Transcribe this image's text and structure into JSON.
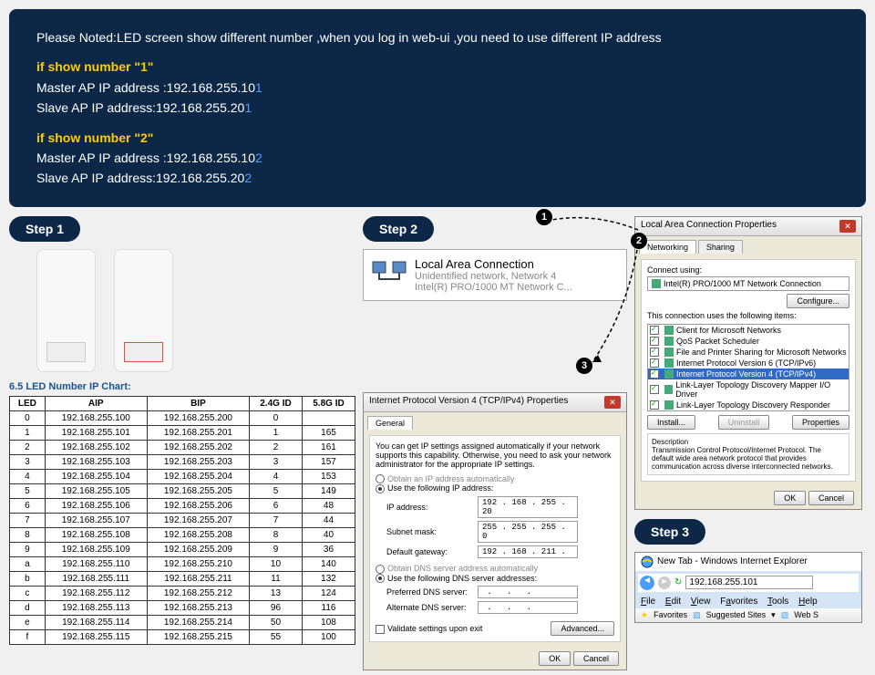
{
  "banner": {
    "intro": "Please Noted:LED screen show different number ,when you log in web-ui ,you need to use different IP address",
    "h1": "if show number \"1\"",
    "m1a": "Master AP IP address :192.168.255.10",
    "m1d": "1",
    "s1a": "Slave AP IP address:192.168.255.20",
    "s1d": "1",
    "h2": "if show number \"2\"",
    "m2a": "Master AP IP address :192.168.255.10",
    "m2d": "2",
    "s2a": "Slave AP IP address:192.168.255.20",
    "s2d": "2"
  },
  "steps": {
    "s1": "Step 1",
    "s2": "Step 2",
    "s3": "Step 3"
  },
  "chart": {
    "title": "6.5 LED Number IP Chart:",
    "columns": [
      "LED",
      "AIP",
      "BIP",
      "2.4G ID",
      "5.8G ID"
    ],
    "rows": [
      [
        "0",
        "192.168.255.100",
        "192.168.255.200",
        "0",
        ""
      ],
      [
        "1",
        "192.168.255.101",
        "192.168.255.201",
        "1",
        "165"
      ],
      [
        "2",
        "192.168.255.102",
        "192.168.255.202",
        "2",
        "161"
      ],
      [
        "3",
        "192.168.255.103",
        "192.168.255.203",
        "3",
        "157"
      ],
      [
        "4",
        "192.168.255.104",
        "192.168.255.204",
        "4",
        "153"
      ],
      [
        "5",
        "192.168.255.105",
        "192.168.255.205",
        "5",
        "149"
      ],
      [
        "6",
        "192.168.255.106",
        "192.168.255.206",
        "6",
        "48"
      ],
      [
        "7",
        "192.168.255.107",
        "192.168.255.207",
        "7",
        "44"
      ],
      [
        "8",
        "192.168.255.108",
        "192.168.255.208",
        "8",
        "40"
      ],
      [
        "9",
        "192.168.255.109",
        "192.168.255.209",
        "9",
        "36"
      ],
      [
        "a",
        "192.168.255.110",
        "192.168.255.210",
        "10",
        "140"
      ],
      [
        "b",
        "192.168.255.111",
        "192.168.255.211",
        "11",
        "132"
      ],
      [
        "c",
        "192.168.255.112",
        "192.168.255.212",
        "13",
        "124"
      ],
      [
        "d",
        "192.168.255.113",
        "192.168.255.213",
        "96",
        "116"
      ],
      [
        "e",
        "192.168.255.114",
        "192.168.255.214",
        "50",
        "108"
      ],
      [
        "f",
        "192.168.255.115",
        "192.168.255.215",
        "55",
        "100"
      ]
    ]
  },
  "lac": {
    "title": "Local Area Connection",
    "l1": "Unidentified network, Network 4",
    "l2": "Intel(R) PRO/1000 MT Network C..."
  },
  "ipv4": {
    "title": "Internet Protocol Version 4 (TCP/IPv4) Properties",
    "tab": "General",
    "desc": "You can get IP settings assigned automatically if your network supports this capability. Otherwise, you need to ask your network administrator for the appropriate IP settings.",
    "r1": "Obtain an IP address automatically",
    "r2": "Use the following IP address:",
    "f_ip": "IP address:",
    "v_ip": "192 . 168 . 255 . 20",
    "f_mask": "Subnet mask:",
    "v_mask": "255 . 255 . 255 .  0",
    "f_gw": "Default gateway:",
    "v_gw": "192 . 168 . 211 .",
    "r3": "Obtain DNS server address automatically",
    "r4": "Use the following DNS server addresses:",
    "f_pdns": "Preferred DNS server:",
    "f_adns": "Alternate DNS server:",
    "validate": "Validate settings upon exit",
    "advanced": "Advanced...",
    "ok": "OK",
    "cancel": "Cancel"
  },
  "lacprops": {
    "title": "Local Area Connection Properties",
    "tab1": "Networking",
    "tab2": "Sharing",
    "connusing": "Connect using:",
    "adapter": "Intel(R) PRO/1000 MT Network Connection",
    "configure": "Configure...",
    "itemstxt": "This connection uses the following items:",
    "items": [
      "Client for Microsoft Networks",
      "QoS Packet Scheduler",
      "File and Printer Sharing for Microsoft Networks",
      "Internet Protocol Version 6 (TCP/IPv6)",
      "Internet Protocol Version 4 (TCP/IPv4)",
      "Link-Layer Topology Discovery Mapper I/O Driver",
      "Link-Layer Topology Discovery Responder"
    ],
    "install": "Install...",
    "uninstall": "Uninstall",
    "properties": "Properties",
    "desc_h": "Description",
    "desc": "Transmission Control Protocol/Internet Protocol. The default wide area network protocol that provides communication across diverse interconnected networks.",
    "ok": "OK",
    "cancel": "Cancel"
  },
  "browser": {
    "title": "New Tab - Windows Internet Explorer",
    "url": "192.168.255.101",
    "menu": {
      "file": "File",
      "edit": "Edit",
      "view": "View",
      "fav": "Favorites",
      "tools": "Tools",
      "help": "Help"
    },
    "favlabel": "Favorites",
    "sug": "Suggested Sites",
    "web": "Web S"
  },
  "circles": {
    "c1": "1",
    "c2": "2",
    "c3": "3"
  }
}
